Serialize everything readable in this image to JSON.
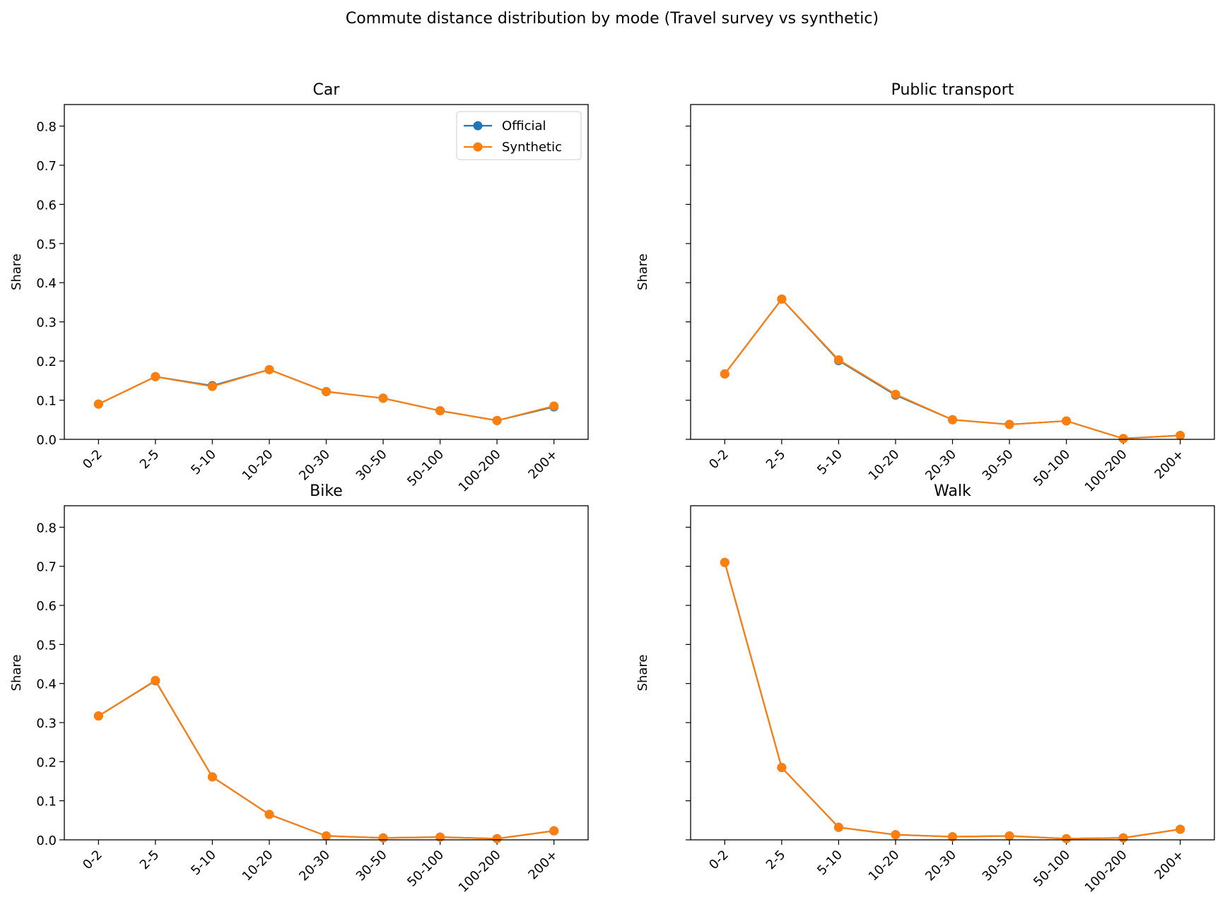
{
  "figure": {
    "suptitle": "Commute distance distribution by mode (Travel survey vs synthetic)"
  },
  "colors": {
    "official": "#1f77b4",
    "synthetic": "#ff7f0e"
  },
  "chart_data": [
    {
      "type": "line",
      "title": "Car",
      "ylabel": "Share",
      "ylim": [
        0,
        0.855
      ],
      "yticks": [
        "0.0",
        "0.1",
        "0.2",
        "0.3",
        "0.4",
        "0.5",
        "0.6",
        "0.7",
        "0.8"
      ],
      "show_ytick_labels": true,
      "legend": "top-right",
      "categories": [
        "0-2",
        "2-5",
        "5-10",
        "10-20",
        "20-30",
        "30-50",
        "50-100",
        "100-200",
        "200+"
      ],
      "series": [
        {
          "name": "Official",
          "values": [
            0.09,
            0.16,
            0.137,
            0.178,
            0.122,
            0.105,
            0.073,
            0.048,
            0.083
          ]
        },
        {
          "name": "Synthetic",
          "values": [
            0.09,
            0.16,
            0.135,
            0.178,
            0.122,
            0.105,
            0.073,
            0.048,
            0.085
          ]
        }
      ]
    },
    {
      "type": "line",
      "title": "Public transport",
      "ylabel": "Share",
      "ylim": [
        0,
        0.855
      ],
      "show_ytick_labels": false,
      "categories": [
        "0-2",
        "2-5",
        "5-10",
        "10-20",
        "20-30",
        "30-50",
        "50-100",
        "100-200",
        "200+"
      ],
      "series": [
        {
          "name": "Official",
          "values": [
            0.167,
            0.358,
            0.201,
            0.113,
            0.05,
            0.038,
            0.047,
            0.002,
            0.01
          ]
        },
        {
          "name": "Synthetic",
          "values": [
            0.167,
            0.358,
            0.203,
            0.115,
            0.05,
            0.038,
            0.047,
            0.002,
            0.01
          ]
        }
      ]
    },
    {
      "type": "line",
      "title": "Bike",
      "ylabel": "Share",
      "ylim": [
        0,
        0.855
      ],
      "yticks": [
        "0.0",
        "0.1",
        "0.2",
        "0.3",
        "0.4",
        "0.5",
        "0.6",
        "0.7",
        "0.8"
      ],
      "show_ytick_labels": true,
      "categories": [
        "0-2",
        "2-5",
        "5-10",
        "10-20",
        "20-30",
        "30-50",
        "50-100",
        "100-200",
        "200+"
      ],
      "series": [
        {
          "name": "Official",
          "values": [
            0.317,
            0.407,
            0.161,
            0.065,
            0.01,
            0.005,
            0.007,
            0.003,
            0.023
          ]
        },
        {
          "name": "Synthetic",
          "values": [
            0.317,
            0.408,
            0.161,
            0.065,
            0.01,
            0.005,
            0.007,
            0.003,
            0.023
          ]
        }
      ]
    },
    {
      "type": "line",
      "title": "Walk",
      "ylabel": "Share",
      "ylim": [
        0,
        0.855
      ],
      "show_ytick_labels": false,
      "categories": [
        "0-2",
        "2-5",
        "5-10",
        "10-20",
        "20-30",
        "30-50",
        "50-100",
        "100-200",
        "200+"
      ],
      "series": [
        {
          "name": "Official",
          "values": [
            0.71,
            0.185,
            0.032,
            0.013,
            0.008,
            0.01,
            0.003,
            0.005,
            0.027
          ]
        },
        {
          "name": "Synthetic",
          "values": [
            0.71,
            0.185,
            0.032,
            0.013,
            0.008,
            0.01,
            0.003,
            0.005,
            0.027
          ]
        }
      ]
    }
  ]
}
